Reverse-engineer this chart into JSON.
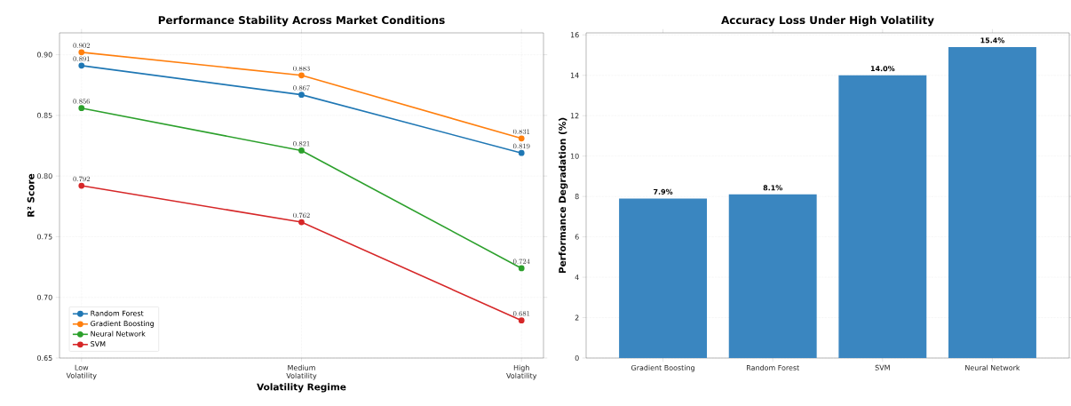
{
  "chart_data": [
    {
      "type": "line",
      "title": "Performance Stability Across Market Conditions",
      "xlabel": "Volatility Regime",
      "ylabel": "R² Score",
      "categories": [
        "Low Volatility",
        "Medium Volatility",
        "High Volatility"
      ],
      "series": [
        {
          "name": "Random Forest",
          "color": "#1f77b4",
          "values": [
            0.891,
            0.867,
            0.819
          ]
        },
        {
          "name": "Gradient Boosting",
          "color": "#ff7f0e",
          "values": [
            0.902,
            0.883,
            0.831
          ]
        },
        {
          "name": "Neural Network",
          "color": "#2ca02c",
          "values": [
            0.856,
            0.821,
            0.724
          ]
        },
        {
          "name": "SVM",
          "color": "#d62728",
          "values": [
            0.792,
            0.762,
            0.681
          ]
        }
      ],
      "ylim": [
        0.65,
        0.918
      ],
      "yticks": [
        {
          "value": 0.65,
          "label": "0.65"
        },
        {
          "value": 0.7,
          "label": "0.70"
        },
        {
          "value": 0.75,
          "label": "0.75"
        },
        {
          "value": 0.8,
          "label": "0.80"
        },
        {
          "value": 0.85,
          "label": "0.85"
        },
        {
          "value": 0.9,
          "label": "0.90"
        }
      ],
      "data_labels": true,
      "grid": true,
      "legend": "bottom left",
      "marker": "circle",
      "line_style": "solid"
    },
    {
      "type": "bar",
      "title": "Accuracy Loss Under High Volatility",
      "ylabel": "Performance Degradation (%)",
      "categories": [
        "Gradient Boosting",
        "Random Forest",
        "SVM",
        "Neural Network"
      ],
      "values": [
        7.9,
        8.1,
        14.0,
        15.4
      ],
      "color": "#3a86c0",
      "value_labels": [
        "7.9%",
        "8.1%",
        "14.0%",
        "15.4%"
      ],
      "ylim": [
        0,
        16.1
      ],
      "yticks": [
        0,
        2,
        4,
        6,
        8,
        10,
        12,
        14,
        16
      ],
      "grid": "y"
    }
  ]
}
